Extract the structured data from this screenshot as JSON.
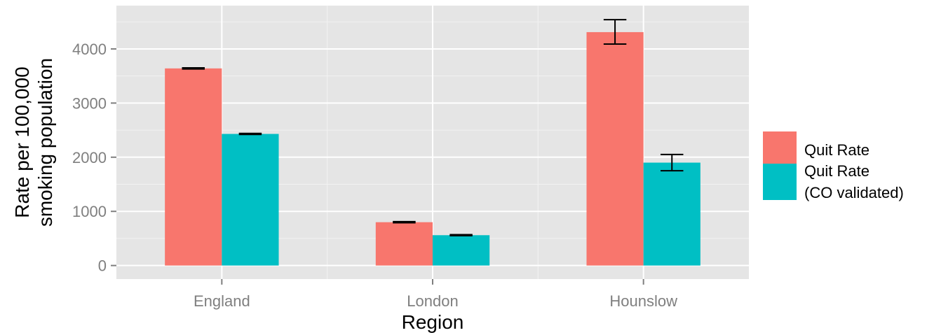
{
  "chart_data": {
    "type": "bar",
    "categories": [
      "England",
      "London",
      "Hounslow"
    ],
    "series": [
      {
        "name": "Quit Rate",
        "color": "#f8766d",
        "values": [
          3640,
          800,
          4310
        ],
        "error": [
          [
            3630,
            3650
          ],
          [
            790,
            810
          ],
          [
            4090,
            4540
          ]
        ]
      },
      {
        "name": "Quit Rate (CO validated)",
        "name_lines": [
          "Quit Rate",
          "(CO validated)"
        ],
        "color": "#00bfc4",
        "values": [
          2430,
          560,
          1900
        ],
        "error": [
          [
            2420,
            2440
          ],
          [
            550,
            570
          ],
          [
            1750,
            2050
          ]
        ]
      }
    ],
    "xlabel": "Region",
    "ylabel_lines": [
      "Rate per 100,000",
      "smoking population"
    ],
    "ylim": [
      -250,
      4800
    ],
    "yticks": [
      0,
      1000,
      2000,
      3000,
      4000
    ],
    "ytick_labels": [
      "0",
      "1000",
      "2000",
      "3000",
      "4000"
    ],
    "grid": true,
    "legend_position": "right",
    "panel_color": "#e5e5e5",
    "grid_color": "#ffffff"
  }
}
